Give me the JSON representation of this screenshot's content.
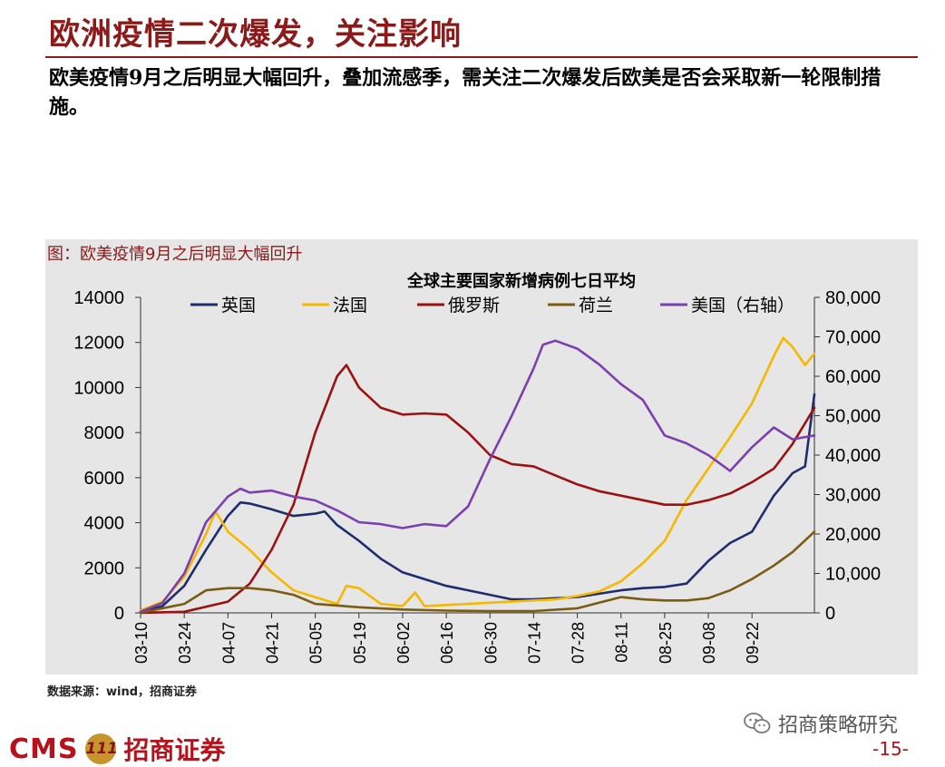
{
  "header": {
    "title": "欧洲疫情二次爆发，关注影响",
    "subtitle": "欧美疫情9月之后明显大幅回升，叠加流感季，需关注二次爆发后欧美是否会采取新一轮限制措施。"
  },
  "figure": {
    "label": "图：欧美疫情9月之后明显大幅回升",
    "source": "数据来源：wind，招商证券"
  },
  "footer": {
    "logo_cms": "CMS",
    "logo_badge": "111",
    "logo_cn": "招商证券",
    "wechat": "招商策略研究",
    "page": "-15-"
  },
  "colors": {
    "brand": "#8c1a1a",
    "uk": "#1f2d6e",
    "france": "#f5b800",
    "russia": "#9b1212",
    "netherlands": "#7a5c12",
    "usa": "#7b3fb0"
  },
  "chart_data": {
    "type": "line",
    "title": "全球主要国家新增病例七日平均",
    "x_ticks": [
      "03-10",
      "03-24",
      "04-07",
      "04-21",
      "05-05",
      "05-19",
      "06-02",
      "06-16",
      "06-30",
      "07-14",
      "07-28",
      "08-11",
      "08-25",
      "09-08",
      "09-22"
    ],
    "x_range": [
      "03-10",
      "10-12"
    ],
    "y_left": {
      "min": 0,
      "max": 14000,
      "ticks": [
        "0",
        "2000",
        "4000",
        "6000",
        "8000",
        "10000",
        "12000",
        "14000"
      ]
    },
    "y_right": {
      "min": 0,
      "max": 80000,
      "ticks": [
        "0",
        "10,000",
        "20,000",
        "30,000",
        "40,000",
        "50,000",
        "60,000",
        "70,000",
        "80,000"
      ]
    },
    "legend_position": "top",
    "series": [
      {
        "name": "英国",
        "axis": "left",
        "color": "#1f2d6e",
        "x": [
          "03-10",
          "03-17",
          "03-24",
          "03-31",
          "04-07",
          "04-11",
          "04-14",
          "04-21",
          "04-28",
          "05-05",
          "05-08",
          "05-12",
          "05-19",
          "05-26",
          "06-02",
          "06-09",
          "06-16",
          "06-23",
          "06-30",
          "07-07",
          "07-14",
          "07-21",
          "07-28",
          "08-04",
          "08-11",
          "08-18",
          "08-25",
          "09-01",
          "09-08",
          "09-15",
          "09-22",
          "09-29",
          "10-05",
          "10-09",
          "10-12"
        ],
        "y": [
          50,
          300,
          1200,
          2800,
          4300,
          4900,
          4850,
          4600,
          4300,
          4400,
          4500,
          3900,
          3200,
          2400,
          1800,
          1500,
          1200,
          1000,
          800,
          600,
          600,
          650,
          700,
          850,
          1000,
          1100,
          1150,
          1300,
          2300,
          3100,
          3600,
          5200,
          6200,
          6500,
          9700
        ]
      },
      {
        "name": "法国",
        "axis": "left",
        "color": "#f5b800",
        "x": [
          "03-10",
          "03-17",
          "03-24",
          "03-31",
          "04-03",
          "04-07",
          "04-14",
          "04-21",
          "04-28",
          "05-05",
          "05-12",
          "05-15",
          "05-19",
          "05-26",
          "06-02",
          "06-06",
          "06-09",
          "06-16",
          "06-23",
          "06-30",
          "07-07",
          "07-14",
          "07-21",
          "07-28",
          "08-04",
          "08-11",
          "08-18",
          "08-25",
          "09-01",
          "09-08",
          "09-15",
          "09-22",
          "09-29",
          "10-02",
          "10-05",
          "10-09",
          "10-12"
        ],
        "y": [
          100,
          500,
          1600,
          3500,
          4500,
          3600,
          2800,
          1800,
          1000,
          700,
          400,
          1200,
          1100,
          400,
          300,
          900,
          300,
          350,
          400,
          450,
          500,
          550,
          600,
          750,
          950,
          1400,
          2200,
          3200,
          5000,
          6400,
          7800,
          9300,
          11400,
          12200,
          11800,
          11000,
          11500
        ]
      },
      {
        "name": "俄罗斯",
        "axis": "left",
        "color": "#9b1212",
        "x": [
          "03-10",
          "03-24",
          "04-07",
          "04-14",
          "04-21",
          "04-28",
          "05-05",
          "05-12",
          "05-15",
          "05-19",
          "05-26",
          "06-02",
          "06-09",
          "06-16",
          "06-23",
          "06-30",
          "07-07",
          "07-14",
          "07-21",
          "07-28",
          "08-04",
          "08-11",
          "08-18",
          "08-25",
          "09-01",
          "09-08",
          "09-15",
          "09-22",
          "09-29",
          "10-05",
          "10-12"
        ],
        "y": [
          5,
          50,
          500,
          1300,
          2800,
          4800,
          8000,
          10500,
          11000,
          10000,
          9100,
          8800,
          8850,
          8800,
          8000,
          7000,
          6600,
          6500,
          6100,
          5700,
          5400,
          5200,
          5000,
          4800,
          4800,
          5000,
          5300,
          5800,
          6400,
          7500,
          9100
        ]
      },
      {
        "name": "荷兰",
        "axis": "left",
        "color": "#7a5c12",
        "x": [
          "03-10",
          "03-24",
          "03-31",
          "04-07",
          "04-14",
          "04-21",
          "04-28",
          "05-05",
          "05-19",
          "06-02",
          "06-16",
          "06-30",
          "07-14",
          "07-28",
          "08-04",
          "08-11",
          "08-18",
          "08-25",
          "09-01",
          "09-08",
          "09-15",
          "09-22",
          "09-29",
          "10-05",
          "10-12"
        ],
        "y": [
          10,
          400,
          1000,
          1100,
          1100,
          1000,
          800,
          400,
          250,
          150,
          100,
          80,
          80,
          200,
          450,
          700,
          600,
          550,
          550,
          650,
          1000,
          1500,
          2100,
          2700,
          3600
        ]
      },
      {
        "name": "美国（右轴）",
        "axis": "right",
        "color": "#7b3fb0",
        "x": [
          "03-10",
          "03-17",
          "03-24",
          "03-31",
          "04-07",
          "04-11",
          "04-14",
          "04-21",
          "04-28",
          "05-05",
          "05-12",
          "05-19",
          "05-26",
          "06-02",
          "06-09",
          "06-16",
          "06-23",
          "06-30",
          "07-07",
          "07-14",
          "07-17",
          "07-21",
          "07-28",
          "08-04",
          "08-11",
          "08-18",
          "08-25",
          "09-01",
          "09-08",
          "09-15",
          "09-22",
          "09-29",
          "10-05",
          "10-12"
        ],
        "y": [
          300,
          2500,
          10000,
          23000,
          29500,
          31500,
          30500,
          31000,
          29500,
          28500,
          26000,
          23000,
          22500,
          21500,
          22500,
          22000,
          27000,
          39000,
          50000,
          62000,
          68000,
          69000,
          67000,
          63000,
          58000,
          54000,
          45000,
          43000,
          40000,
          36000,
          42000,
          47000,
          44000,
          45000
        ]
      }
    ]
  }
}
